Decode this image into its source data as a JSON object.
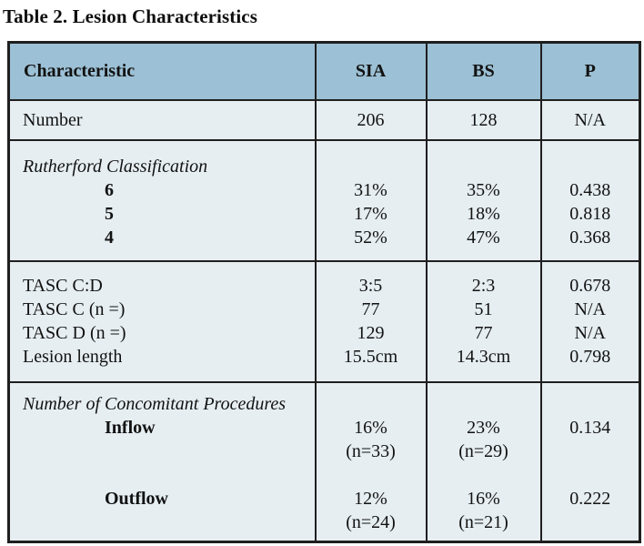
{
  "title": "Table 2. Lesion Characteristics",
  "colors": {
    "header_bg": "#9cc0d5",
    "body_bg": "#e6eef2",
    "border": "#1f1f1f",
    "text": "#121212"
  },
  "table": {
    "headers": [
      "Characteristic",
      "SIA",
      "BS",
      "P"
    ],
    "sections": [
      {
        "rows": [
          {
            "label": "Number",
            "style": "normal",
            "sia": "206",
            "bs": "128",
            "p": "N/A"
          }
        ]
      },
      {
        "rows": [
          {
            "label": "Rutherford Classification",
            "style": "italic",
            "sia": "",
            "bs": "",
            "p": ""
          },
          {
            "label": "6",
            "style": "bold-indent",
            "sia": "31%",
            "bs": "35%",
            "p": "0.438"
          },
          {
            "label": "5",
            "style": "bold-indent",
            "sia": "17%",
            "bs": "18%",
            "p": "0.818"
          },
          {
            "label": "4",
            "style": "bold-indent",
            "sia": "52%",
            "bs": "47%",
            "p": "0.368"
          }
        ]
      },
      {
        "rows": [
          {
            "label": "TASC C:D",
            "style": "normal",
            "sia": "3:5",
            "bs": "2:3",
            "p": "0.678"
          },
          {
            "label": "TASC C (n =)",
            "style": "normal",
            "sia": "77",
            "bs": "51",
            "p": "N/A"
          },
          {
            "label": "TASC D (n =)",
            "style": "normal",
            "sia": "129",
            "bs": "77",
            "p": "N/A"
          },
          {
            "label": "Lesion length",
            "style": "normal",
            "sia": "15.5cm",
            "bs": "14.3cm",
            "p": "0.798"
          }
        ]
      },
      {
        "rows": [
          {
            "label": "Number of Concomitant Procedures",
            "style": "italic",
            "sia": "",
            "bs": "",
            "p": ""
          },
          {
            "label": "Inflow",
            "style": "bold-indent",
            "sia": "16%",
            "bs": "23%",
            "p": "0.134"
          },
          {
            "label": "",
            "style": "normal",
            "sia": "(n=33)",
            "bs": "(n=29)",
            "p": ""
          },
          {
            "label": "",
            "style": "normal",
            "sia": "",
            "bs": "",
            "p": ""
          },
          {
            "label": "Outflow",
            "style": "bold-indent",
            "sia": "12%",
            "bs": "16%",
            "p": "0.222"
          },
          {
            "label": "",
            "style": "normal",
            "sia": "(n=24)",
            "bs": "(n=21)",
            "p": ""
          }
        ]
      }
    ]
  }
}
